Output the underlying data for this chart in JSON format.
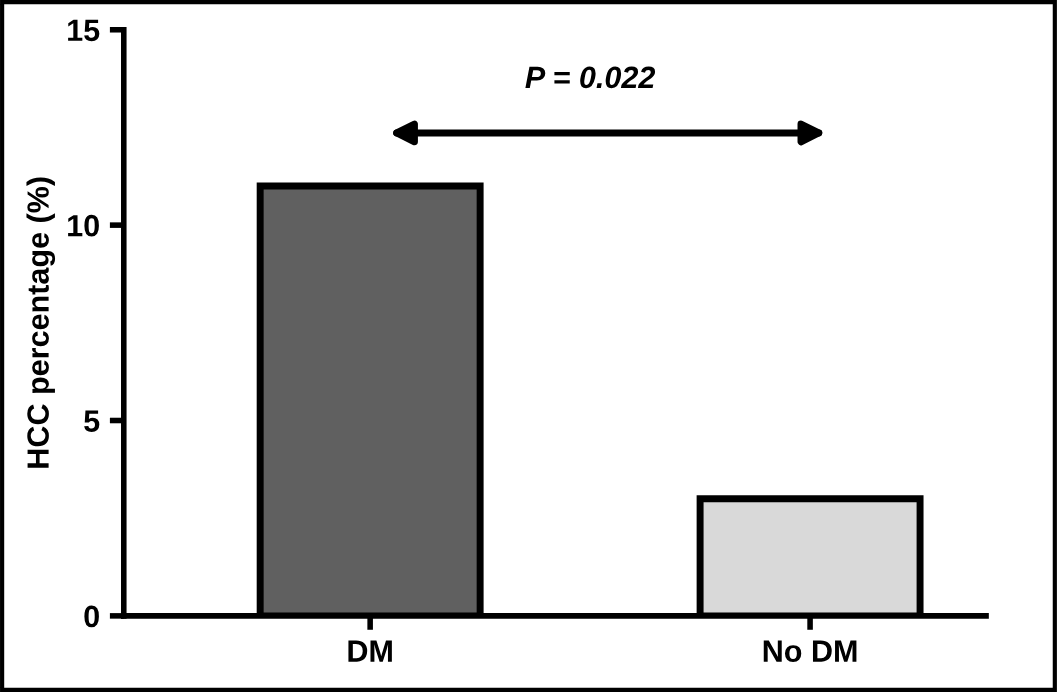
{
  "chart_data": {
    "type": "bar",
    "ylabel": "HCC percentage (%)",
    "categories": [
      "DM",
      "No DM"
    ],
    "values": [
      11,
      3
    ],
    "colors": [
      "#606060",
      "#d9d9d9"
    ],
    "ylim": [
      0,
      15
    ],
    "yticks": [
      0,
      5,
      10,
      15
    ],
    "grid": false,
    "annotations": [
      "P = 0.022"
    ]
  }
}
